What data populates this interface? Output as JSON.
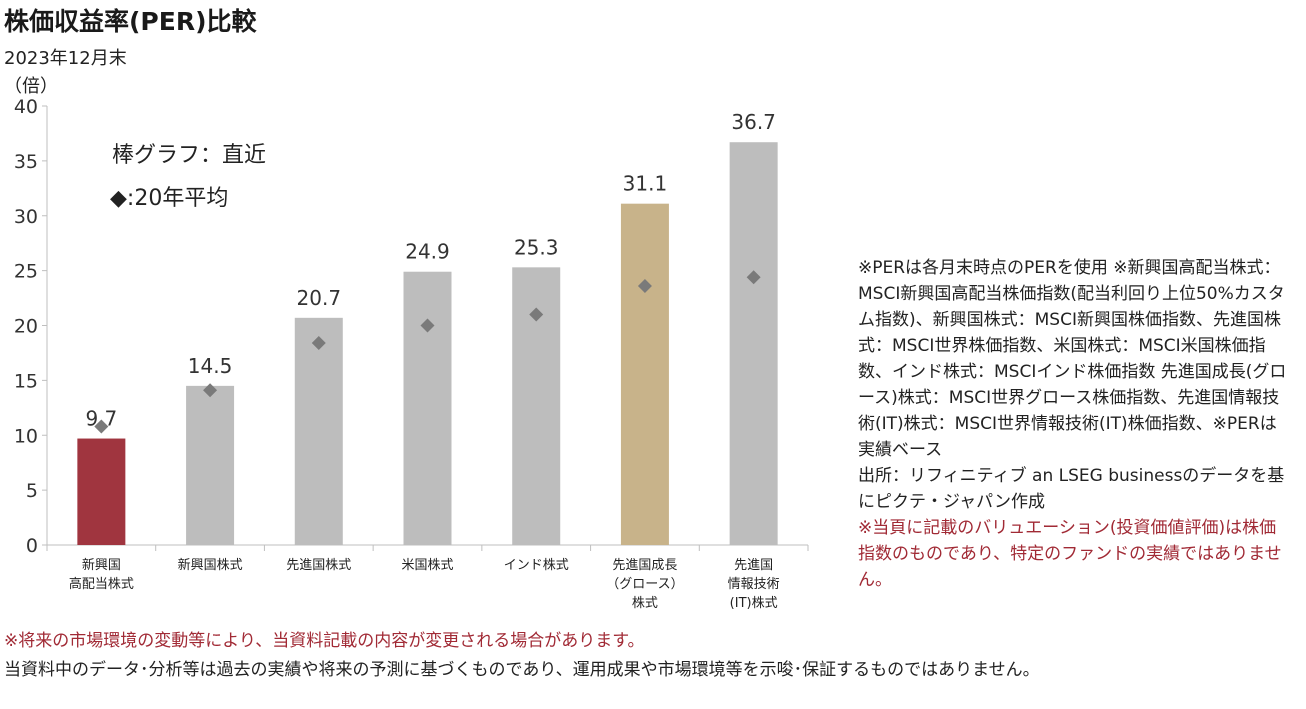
{
  "page": {
    "title": "株価収益率(PER)比較",
    "subtitle": "2023年12月末"
  },
  "chart_data": {
    "type": "bar",
    "ylabel": "（倍）",
    "ylim": [
      0,
      40
    ],
    "yticks": [
      0,
      5,
      10,
      15,
      20,
      25,
      30,
      35,
      40
    ],
    "grid": false,
    "categories": [
      [
        "新興国",
        "高配当株式"
      ],
      [
        "新興国株式"
      ],
      [
        "先進国株式"
      ],
      [
        "米国株式"
      ],
      [
        "インド株式"
      ],
      [
        "先進国成長",
        "（グロース）",
        "株式"
      ],
      [
        "先進国",
        "情報技術",
        "(IT)株式"
      ]
    ],
    "series": [
      {
        "values": [
          9.7,
          14.5,
          20.7,
          24.9,
          25.3,
          31.1,
          36.7
        ]
      },
      {
        "values": [
          10.8,
          14.1,
          18.4,
          20.0,
          21.0,
          23.6,
          24.4
        ]
      }
    ],
    "data_labels": [
      "9.7",
      "14.5",
      "20.7",
      "24.9",
      "25.3",
      "31.1",
      "36.7"
    ],
    "bar_colors": [
      "#a0353f",
      "#bdbdbd",
      "#bdbdbd",
      "#bdbdbd",
      "#bdbdbd",
      "#c8b38a",
      "#bdbdbd"
    ],
    "marker_color": "#7a7a7a",
    "legend": {
      "position": "top-left",
      "bar_text": "棒グラフ：直近",
      "marker_text": "◆:20年平均"
    }
  },
  "notes": {
    "lines": [
      "※PERは各月末時点のPERを使用 ※新興国高配当株式：MSCI新興国高配当株価指数(配当利回り上位50%カスタム指数)、新興国株式：MSCI新興国株価指数、先進国株式：MSCI世界株価指数、米国株式：MSCI米国株価指数、インド株式：MSCIインド株価指数 先進国成長(グロース)株式：MSCI世界グロース株価指数、先進国情報技術(IT)株式：MSCI世界情報技術(IT)株価指数、※PERは実績ベース",
      "出所：リフィニティブ an LSEG businessのデータを基にピクテ・ジャパン作成"
    ],
    "red_line": "※当頁に記載のバリュエーション(投資価値評価)は株価指数のものであり、特定のファンドの実績ではありません。"
  },
  "footer": {
    "warning": "※将来の市場環境の変動等により、当資料記載の内容が変更される場合があります。",
    "disclaimer": "当資料中のデータ･分析等は過去の実績や将来の予測に基づくものであり、運用成果や市場環境等を示唆･保証するものではありません。"
  }
}
